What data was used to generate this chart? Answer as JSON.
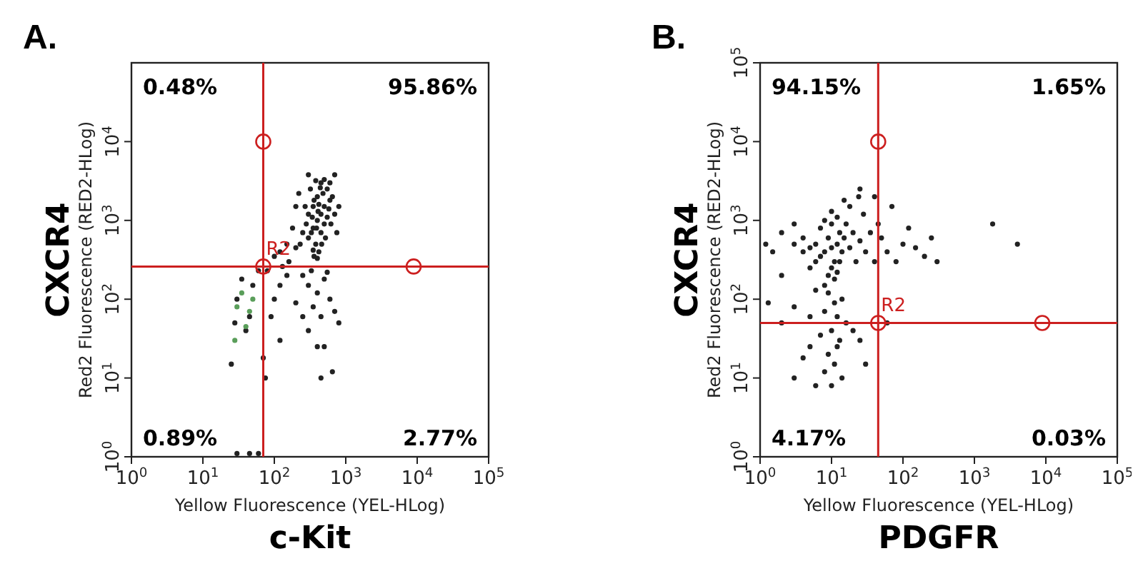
{
  "chart_data": [
    {
      "type": "scatter",
      "title": "A.",
      "xlabel": "Yellow Fluorescence (YEL-HLog)",
      "ylabel": "Red2 Fluorescence (RED2-HLog)",
      "log": "xy",
      "grid": false,
      "marker": "circle",
      "xlim": [
        1,
        100000
      ],
      "ylim": [
        1,
        100000
      ],
      "xticks": [
        {
          "value": 1,
          "label": "10$^{0}$"
        },
        {
          "value": 10,
          "label": "10$^{1}$"
        },
        {
          "value": 100,
          "label": "10$^{2}$"
        },
        {
          "value": 1000,
          "label": "10$^{3}$"
        },
        {
          "value": 10000,
          "label": "10$^{4}$"
        },
        {
          "value": 100000,
          "label": "10$^{5}$"
        }
      ],
      "yticks": [
        {
          "value": 1,
          "label": "10$^{0}$"
        },
        {
          "value": 10,
          "label": "10$^{1}$"
        },
        {
          "value": 100,
          "label": "10$^{2}$"
        },
        {
          "value": 1000,
          "label": "10$^{3}$"
        },
        {
          "value": 10000,
          "label": "10$^{4}$"
        }
      ],
      "ref_lines": [
        {
          "axis": "x",
          "value": 70,
          "color": "#cc1f1f"
        },
        {
          "axis": "y",
          "value": 260,
          "color": "#cc1f1f"
        }
      ],
      "annotations": [
        "0.48%",
        "95.86%",
        "0.89%",
        "2.77%",
        "c-Kit",
        "CXCR4",
        {
          "text": "R2",
          "x": 70,
          "y": 260
        }
      ],
      "series": [
        {
          "color": "#222222",
          "x": [
            300,
            350,
            400,
            450,
            500,
            400,
            350,
            450,
            380,
            420,
            360,
            500,
            550,
            600,
            300,
            280,
            320,
            450,
            550,
            650,
            700,
            250,
            230,
            200,
            380,
            500,
            600,
            420,
            480,
            340,
            460,
            520,
            390,
            410,
            360,
            330,
            270,
            620,
            580,
            440,
            350,
            400,
            150,
            180,
            120,
            100,
            200,
            700,
            800,
            750,
            220,
            160,
            130,
            300,
            250,
            300,
            400,
            500,
            600,
            350,
            450,
            700,
            800,
            200,
            300,
            400,
            500,
            450,
            650,
            550,
            330,
            150,
            120,
            100,
            90,
            80,
            60,
            50,
            45,
            40,
            30,
            28,
            35,
            25,
            70,
            75,
            120,
            250,
            30,
            45,
            60
          ],
          "values": [
            600,
            800,
            1000,
            1200,
            1500,
            2000,
            1500,
            700,
            500,
            400,
            350,
            900,
            1100,
            1800,
            1200,
            900,
            2500,
            3000,
            2500,
            2000,
            1200,
            700,
            500,
            450,
            3200,
            3300,
            3000,
            1600,
            2200,
            1100,
            500,
            600,
            800,
            1300,
            1800,
            700,
            1500,
            900,
            1400,
            2600,
            420,
            330,
            500,
            800,
            400,
            350,
            1500,
            3800,
            1500,
            700,
            2200,
            300,
            260,
            3800,
            200,
            150,
            120,
            180,
            100,
            80,
            60,
            70,
            50,
            90,
            40,
            25,
            25,
            10,
            12,
            220,
            230,
            200,
            150,
            100,
            60,
            230,
            230,
            150,
            60,
            40,
            100,
            50,
            180,
            15,
            18,
            10,
            30,
            60,
            1.1,
            1.1,
            1.1
          ]
        },
        {
          "color": "#5a9e5a",
          "x": [
            30,
            35,
            40,
            45,
            28,
            50
          ],
          "values": [
            80,
            120,
            45,
            70,
            30,
            100
          ]
        }
      ]
    },
    {
      "type": "scatter",
      "title": "B.",
      "xlabel": "Yellow Fluorescence (YEL-HLog)",
      "ylabel": "Red2 Fluorescence (RED2-HLog)",
      "log": "xy",
      "grid": false,
      "marker": "circle",
      "xlim": [
        1,
        100000
      ],
      "ylim": [
        1,
        100000
      ],
      "xticks": [
        {
          "value": 1,
          "label": "10$^{0}$"
        },
        {
          "value": 10,
          "label": "10$^{1}$"
        },
        {
          "value": 100,
          "label": "10$^{2}$"
        },
        {
          "value": 1000,
          "label": "10$^{3}$"
        },
        {
          "value": 10000,
          "label": "10$^{4}$"
        },
        {
          "value": 100000,
          "label": "10$^{5}$"
        }
      ],
      "yticks": [
        {
          "value": 1,
          "label": "10$^{0}$"
        },
        {
          "value": 10,
          "label": "10$^{1}$"
        },
        {
          "value": 100,
          "label": "10$^{2}$"
        },
        {
          "value": 1000,
          "label": "10$^{3}$"
        },
        {
          "value": 10000,
          "label": "10$^{4}$"
        },
        {
          "value": 100000,
          "label": "10$^{5}$"
        }
      ],
      "ref_lines": [
        {
          "axis": "x",
          "value": 45,
          "color": "#cc1f1f"
        },
        {
          "axis": "y",
          "value": 50,
          "color": "#cc1f1f"
        }
      ],
      "annotations": [
        "94.15%",
        "1.65%",
        "4.17%",
        "0.03%",
        "PDGFR",
        "CXCR4",
        {
          "text": "R2",
          "x": 45,
          "y": 50
        }
      ],
      "series": [
        {
          "color": "#222222",
          "x": [
            10,
            8,
            12,
            9,
            11,
            7,
            13,
            10,
            8,
            12,
            6,
            14,
            10,
            9,
            11,
            15,
            5,
            7,
            13,
            16,
            10,
            8,
            12,
            6,
            4,
            4,
            3,
            5,
            18,
            20,
            22,
            25,
            30,
            35,
            40,
            45,
            28,
            24,
            18,
            15,
            3,
            2,
            1.5,
            2,
            1.2,
            6,
            9,
            11,
            14,
            8,
            12,
            10,
            7,
            13,
            9,
            11,
            8,
            12,
            5,
            4,
            3,
            6,
            10,
            14,
            16,
            20,
            25,
            30,
            5,
            3,
            2,
            1.3,
            50,
            60,
            80,
            100,
            150,
            200,
            250,
            300,
            120,
            70,
            60,
            1800,
            4000,
            25,
            40
          ],
          "values": [
            450,
            400,
            500,
            600,
            300,
            350,
            700,
            900,
            1000,
            1100,
            500,
            400,
            250,
            200,
            180,
            600,
            450,
            800,
            300,
            900,
            1300,
            150,
            220,
            300,
            400,
            600,
            500,
            250,
            450,
            700,
            300,
            550,
            400,
            700,
            300,
            900,
            1200,
            2000,
            1500,
            1800,
            900,
            700,
            400,
            200,
            500,
            130,
            120,
            90,
            100,
            70,
            60,
            40,
            35,
            30,
            20,
            15,
            12,
            25,
            25,
            18,
            10,
            8,
            8,
            10,
            50,
            40,
            30,
            15,
            60,
            80,
            50,
            90,
            600,
            400,
            300,
            500,
            450,
            350,
            600,
            300,
            800,
            1500,
            50,
            900,
            500,
            2500,
            2000
          ]
        }
      ]
    }
  ]
}
